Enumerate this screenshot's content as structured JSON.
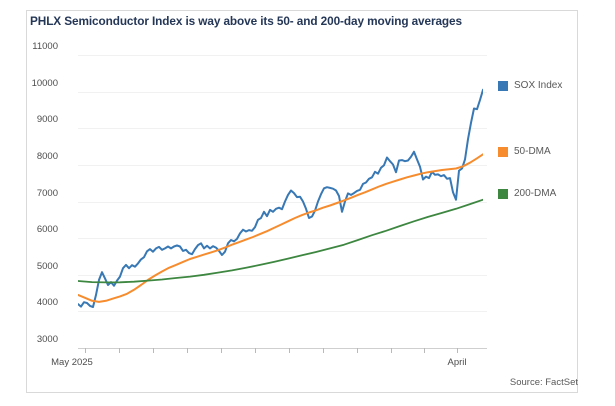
{
  "title": "PHLX Semiconductor Index is way above its 50- and 200-day moving averages",
  "source": "Source: FactSet",
  "chart_data": {
    "type": "line",
    "title": "PHLX Semiconductor Index is way above its 50- and 200-day moving averages",
    "xlabel": "",
    "ylabel": "",
    "ylim": [
      3000,
      11000
    ],
    "yticks": [
      3000,
      4000,
      5000,
      6000,
      7000,
      8000,
      9000,
      10000,
      11000
    ],
    "grid": "horizontal",
    "legend_position": "right",
    "x_axis": {
      "span": 405,
      "tick_offsets": [
        7,
        41,
        75,
        109,
        143,
        177,
        211,
        245,
        279,
        313,
        346,
        379
      ],
      "labels": [
        {
          "text": "May 2025",
          "off": -6
        },
        {
          "text": "April",
          "off": 379
        }
      ]
    },
    "series": [
      {
        "name": "SOX Index",
        "color": "#3878b4",
        "width": 2,
        "points": [
          [
            0,
            4200
          ],
          [
            3,
            4130
          ],
          [
            6,
            4250
          ],
          [
            9,
            4230
          ],
          [
            12,
            4150
          ],
          [
            15,
            4120
          ],
          [
            18,
            4450
          ],
          [
            21,
            4860
          ],
          [
            24,
            5070
          ],
          [
            27,
            4900
          ],
          [
            30,
            4720
          ],
          [
            33,
            4800
          ],
          [
            36,
            4700
          ],
          [
            39,
            4840
          ],
          [
            42,
            4950
          ],
          [
            45,
            5180
          ],
          [
            48,
            5270
          ],
          [
            51,
            5180
          ],
          [
            54,
            5260
          ],
          [
            57,
            5220
          ],
          [
            60,
            5310
          ],
          [
            63,
            5420
          ],
          [
            66,
            5480
          ],
          [
            69,
            5640
          ],
          [
            72,
            5700
          ],
          [
            75,
            5630
          ],
          [
            78,
            5720
          ],
          [
            81,
            5760
          ],
          [
            84,
            5680
          ],
          [
            87,
            5720
          ],
          [
            90,
            5770
          ],
          [
            93,
            5720
          ],
          [
            96,
            5770
          ],
          [
            99,
            5800
          ],
          [
            102,
            5770
          ],
          [
            105,
            5650
          ],
          [
            108,
            5680
          ],
          [
            111,
            5590
          ],
          [
            114,
            5560
          ],
          [
            117,
            5700
          ],
          [
            120,
            5810
          ],
          [
            123,
            5860
          ],
          [
            126,
            5720
          ],
          [
            129,
            5790
          ],
          [
            132,
            5720
          ],
          [
            135,
            5780
          ],
          [
            138,
            5740
          ],
          [
            141,
            5650
          ],
          [
            144,
            5540
          ],
          [
            147,
            5630
          ],
          [
            150,
            5860
          ],
          [
            153,
            5950
          ],
          [
            156,
            5910
          ],
          [
            159,
            5980
          ],
          [
            162,
            6130
          ],
          [
            165,
            6230
          ],
          [
            168,
            6180
          ],
          [
            171,
            6220
          ],
          [
            174,
            6200
          ],
          [
            177,
            6300
          ],
          [
            180,
            6500
          ],
          [
            183,
            6550
          ],
          [
            186,
            6720
          ],
          [
            189,
            6600
          ],
          [
            192,
            6770
          ],
          [
            195,
            6720
          ],
          [
            198,
            6800
          ],
          [
            201,
            6830
          ],
          [
            204,
            6790
          ],
          [
            207,
            7000
          ],
          [
            210,
            7180
          ],
          [
            213,
            7300
          ],
          [
            216,
            7230
          ],
          [
            219,
            7120
          ],
          [
            222,
            7130
          ],
          [
            225,
            7000
          ],
          [
            228,
            6800
          ],
          [
            231,
            6550
          ],
          [
            234,
            6590
          ],
          [
            237,
            6750
          ],
          [
            240,
            7000
          ],
          [
            243,
            7200
          ],
          [
            246,
            7360
          ],
          [
            249,
            7390
          ],
          [
            252,
            7370
          ],
          [
            255,
            7350
          ],
          [
            258,
            7300
          ],
          [
            261,
            7150
          ],
          [
            264,
            6720
          ],
          [
            267,
            7000
          ],
          [
            270,
            7220
          ],
          [
            273,
            7180
          ],
          [
            276,
            7230
          ],
          [
            279,
            7290
          ],
          [
            282,
            7320
          ],
          [
            285,
            7480
          ],
          [
            288,
            7520
          ],
          [
            291,
            7620
          ],
          [
            294,
            7660
          ],
          [
            297,
            7810
          ],
          [
            300,
            7760
          ],
          [
            303,
            7920
          ],
          [
            306,
            7990
          ],
          [
            309,
            8200
          ],
          [
            312,
            8100
          ],
          [
            315,
            8010
          ],
          [
            318,
            7800
          ],
          [
            321,
            8120
          ],
          [
            324,
            8130
          ],
          [
            327,
            8100
          ],
          [
            330,
            8120
          ],
          [
            333,
            8220
          ],
          [
            336,
            8360
          ],
          [
            339,
            8150
          ],
          [
            342,
            7950
          ],
          [
            345,
            7600
          ],
          [
            348,
            7680
          ],
          [
            351,
            7640
          ],
          [
            354,
            7810
          ],
          [
            357,
            7730
          ],
          [
            360,
            7740
          ],
          [
            363,
            7690
          ],
          [
            366,
            7720
          ],
          [
            369,
            7620
          ],
          [
            372,
            7640
          ],
          [
            375,
            7250
          ],
          [
            378,
            7050
          ],
          [
            381,
            7840
          ],
          [
            384,
            7900
          ],
          [
            387,
            8150
          ],
          [
            390,
            8700
          ],
          [
            393,
            9150
          ],
          [
            396,
            9540
          ],
          [
            399,
            9520
          ],
          [
            402,
            9770
          ],
          [
            405,
            10050
          ]
        ]
      },
      {
        "name": "50-DMA",
        "color": "#f68c2e",
        "width": 2,
        "points": [
          [
            0,
            4450
          ],
          [
            7,
            4370
          ],
          [
            14,
            4290
          ],
          [
            21,
            4260
          ],
          [
            28,
            4290
          ],
          [
            35,
            4350
          ],
          [
            42,
            4410
          ],
          [
            49,
            4480
          ],
          [
            56,
            4590
          ],
          [
            63,
            4720
          ],
          [
            70,
            4860
          ],
          [
            77,
            4980
          ],
          [
            84,
            5090
          ],
          [
            91,
            5190
          ],
          [
            98,
            5270
          ],
          [
            105,
            5350
          ],
          [
            112,
            5430
          ],
          [
            119,
            5490
          ],
          [
            126,
            5550
          ],
          [
            133,
            5610
          ],
          [
            140,
            5670
          ],
          [
            147,
            5740
          ],
          [
            154,
            5820
          ],
          [
            161,
            5890
          ],
          [
            168,
            5960
          ],
          [
            175,
            6030
          ],
          [
            182,
            6110
          ],
          [
            189,
            6190
          ],
          [
            196,
            6280
          ],
          [
            203,
            6370
          ],
          [
            210,
            6460
          ],
          [
            217,
            6550
          ],
          [
            224,
            6630
          ],
          [
            231,
            6700
          ],
          [
            238,
            6760
          ],
          [
            245,
            6830
          ],
          [
            252,
            6890
          ],
          [
            259,
            6960
          ],
          [
            266,
            7030
          ],
          [
            273,
            7100
          ],
          [
            280,
            7180
          ],
          [
            287,
            7250
          ],
          [
            294,
            7330
          ],
          [
            301,
            7410
          ],
          [
            308,
            7480
          ],
          [
            315,
            7540
          ],
          [
            322,
            7600
          ],
          [
            329,
            7660
          ],
          [
            336,
            7710
          ],
          [
            343,
            7760
          ],
          [
            350,
            7800
          ],
          [
            357,
            7830
          ],
          [
            364,
            7860
          ],
          [
            371,
            7880
          ],
          [
            378,
            7900
          ],
          [
            385,
            7960
          ],
          [
            392,
            8060
          ],
          [
            399,
            8180
          ],
          [
            405,
            8290
          ]
        ]
      },
      {
        "name": "200-DMA",
        "color": "#3d8741",
        "width": 1.8,
        "points": [
          [
            0,
            4830
          ],
          [
            14,
            4800
          ],
          [
            28,
            4790
          ],
          [
            42,
            4795
          ],
          [
            56,
            4810
          ],
          [
            70,
            4840
          ],
          [
            84,
            4870
          ],
          [
            98,
            4910
          ],
          [
            112,
            4950
          ],
          [
            126,
            5000
          ],
          [
            140,
            5060
          ],
          [
            154,
            5120
          ],
          [
            168,
            5190
          ],
          [
            182,
            5270
          ],
          [
            196,
            5350
          ],
          [
            210,
            5440
          ],
          [
            224,
            5530
          ],
          [
            238,
            5620
          ],
          [
            252,
            5720
          ],
          [
            266,
            5820
          ],
          [
            280,
            5950
          ],
          [
            294,
            6080
          ],
          [
            308,
            6200
          ],
          [
            322,
            6330
          ],
          [
            336,
            6460
          ],
          [
            350,
            6580
          ],
          [
            364,
            6690
          ],
          [
            378,
            6800
          ],
          [
            392,
            6930
          ],
          [
            405,
            7050
          ]
        ]
      }
    ]
  }
}
